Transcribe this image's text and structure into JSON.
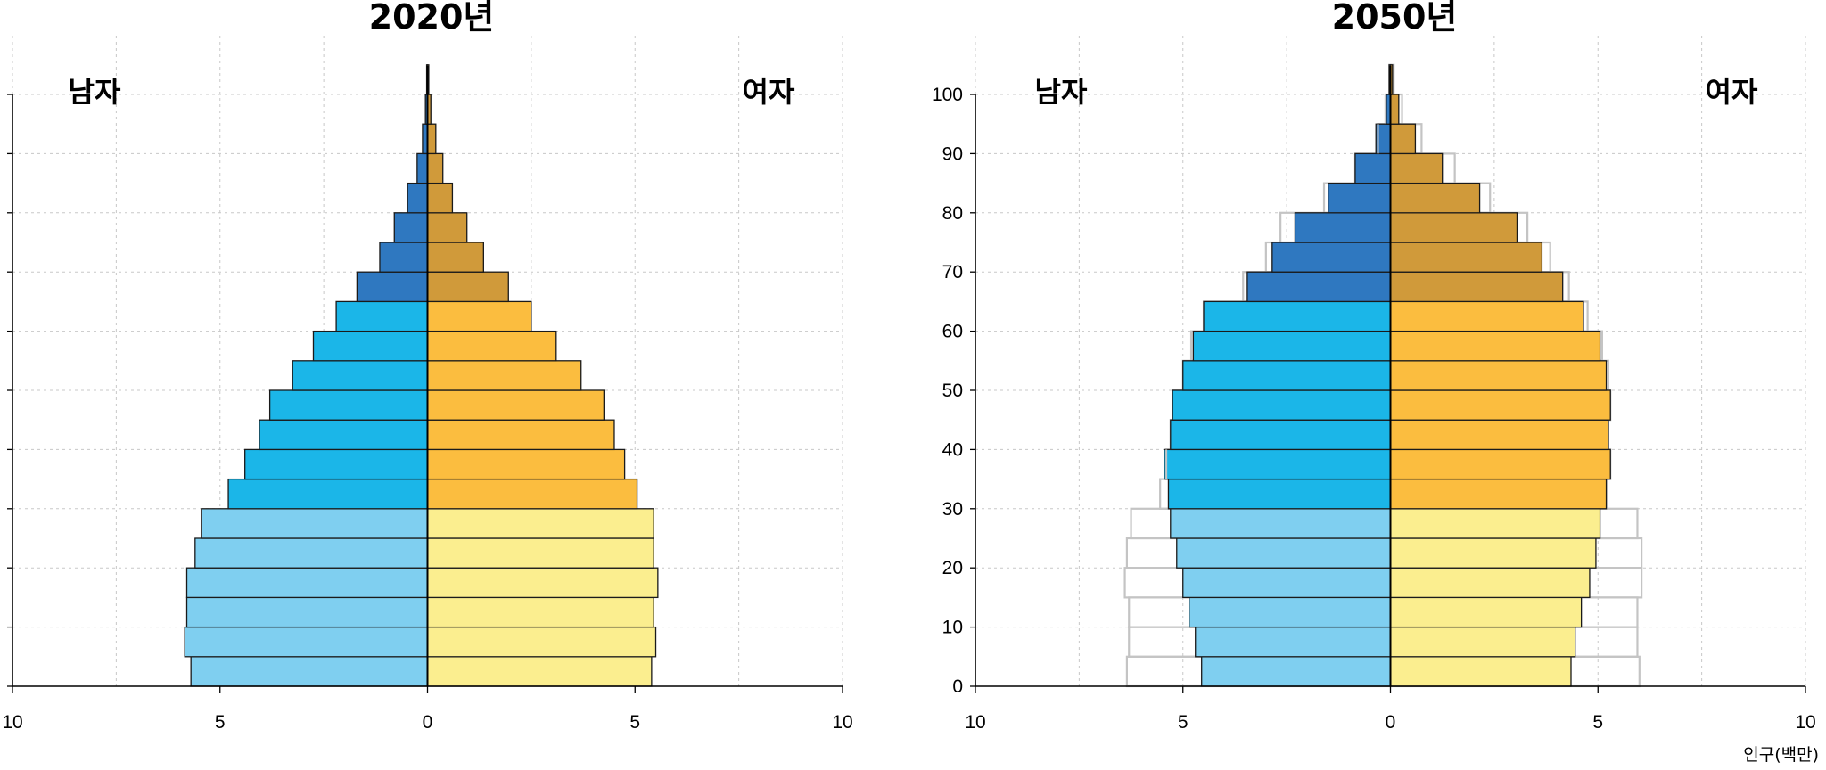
{
  "chart_data": [
    {
      "type": "bar",
      "title": "2020년",
      "left_label": "남자",
      "right_label": "여자",
      "age_groups": [
        "0-4",
        "5-9",
        "10-14",
        "15-19",
        "20-24",
        "25-29",
        "30-34",
        "35-39",
        "40-44",
        "45-49",
        "50-54",
        "55-59",
        "60-64",
        "65-69",
        "70-74",
        "75-79",
        "80-84",
        "85-89",
        "90-94",
        "95-99",
        "100+"
      ],
      "series": [
        {
          "name": "남자",
          "values": [
            5.7,
            5.85,
            5.8,
            5.8,
            5.6,
            5.45,
            4.8,
            4.4,
            4.05,
            3.8,
            3.25,
            2.75,
            2.2,
            1.7,
            1.15,
            0.8,
            0.48,
            0.25,
            0.12,
            0.05,
            0.02
          ]
        },
        {
          "name": "여자",
          "values": [
            5.4,
            5.5,
            5.45,
            5.55,
            5.45,
            5.45,
            5.05,
            4.75,
            4.5,
            4.25,
            3.7,
            3.1,
            2.5,
            1.95,
            1.35,
            0.95,
            0.6,
            0.37,
            0.2,
            0.08,
            0.03
          ]
        }
      ],
      "x_ticks": [
        "10",
        "5",
        "0",
        "5",
        "10"
      ],
      "xlim": [
        -10,
        10
      ],
      "y_ticks": [],
      "colors": {
        "male": [
          "#7fcff0",
          "#1bb6e8",
          "#2f78c0"
        ],
        "female": [
          "#fbee8f",
          "#fbbd3f",
          "#d09a3a"
        ]
      }
    },
    {
      "type": "bar",
      "title": "2050년",
      "left_label": "남자",
      "right_label": "여자",
      "age_groups": [
        "0-4",
        "5-9",
        "10-14",
        "15-19",
        "20-24",
        "25-29",
        "30-34",
        "35-39",
        "40-44",
        "45-49",
        "50-54",
        "55-59",
        "60-64",
        "65-69",
        "70-74",
        "75-79",
        "80-84",
        "85-89",
        "90-94",
        "95-99",
        "100+"
      ],
      "series": [
        {
          "name": "남자",
          "values": [
            4.55,
            4.7,
            4.85,
            5.0,
            5.15,
            5.3,
            5.35,
            5.45,
            5.3,
            5.25,
            5.0,
            4.75,
            4.5,
            3.45,
            2.85,
            2.3,
            1.5,
            0.85,
            0.35,
            0.1,
            0.03
          ]
        },
        {
          "name": "여자",
          "values": [
            4.35,
            4.45,
            4.6,
            4.8,
            4.95,
            5.05,
            5.2,
            5.3,
            5.25,
            5.3,
            5.2,
            5.05,
            4.65,
            4.15,
            3.65,
            3.05,
            2.15,
            1.25,
            0.6,
            0.2,
            0.05
          ]
        }
      ],
      "reference_2020": {
        "male": [
          6.35,
          6.3,
          6.3,
          6.4,
          6.35,
          6.25,
          5.55,
          5.4,
          5.3,
          5.25,
          5.0,
          4.8,
          4.5,
          3.55,
          3.0,
          2.65,
          1.6,
          0.85,
          0.3,
          0.12,
          0.03
        ],
        "female": [
          6.0,
          5.95,
          5.95,
          6.05,
          6.05,
          5.95,
          5.2,
          5.3,
          5.25,
          5.3,
          5.25,
          5.1,
          4.75,
          4.3,
          3.85,
          3.3,
          2.4,
          1.55,
          0.75,
          0.28,
          0.08
        ]
      },
      "x_ticks": [
        "10",
        "5",
        "0",
        "5",
        "10"
      ],
      "xlim": [
        -10,
        10
      ],
      "y_ticks": [
        "0",
        "10",
        "20",
        "30",
        "40",
        "50",
        "60",
        "70",
        "80",
        "90",
        "100"
      ],
      "unit_label": "인구(백만)",
      "colors": {
        "male": [
          "#7fcff0",
          "#1bb6e8",
          "#2f78c0"
        ],
        "female": [
          "#fbee8f",
          "#fbbd3f",
          "#d09a3a"
        ],
        "reference": "#c4c4c4"
      }
    }
  ]
}
